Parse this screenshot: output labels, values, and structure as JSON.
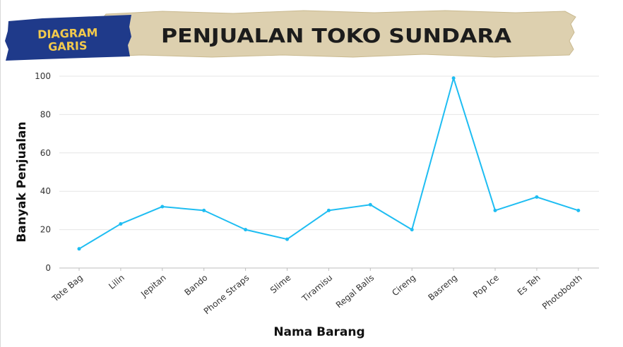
{
  "badge": {
    "line1": "DIAGRAM",
    "line2": "GARIS"
  },
  "title": "PENJUALAN TOKO SUNDARA",
  "colors": {
    "line": "#1EBDF2",
    "banner": "#DDD0AF",
    "badge": "#1F3A8A",
    "badge_text": "#F2C94C",
    "title_text": "#1c1c1c"
  },
  "chart_data": {
    "type": "line",
    "xlabel": "Nama Barang",
    "ylabel": "Banyak Penjualan",
    "ylim": [
      0,
      100
    ],
    "yticks": [
      0,
      20,
      40,
      60,
      80,
      100
    ],
    "grid": true,
    "categories": [
      "Tote Bag",
      "Lilin",
      "Jepitan",
      "Bando",
      "Phone Straps",
      "Slime",
      "Tiramisu",
      "Regal Balls",
      "Cireng",
      "Basreng",
      "Pop Ice",
      "Es Teh",
      "Photobooth"
    ],
    "series": [
      {
        "values": [
          10,
          23,
          32,
          30,
          20,
          15,
          30,
          33,
          20,
          99,
          30,
          37,
          30
        ]
      }
    ]
  }
}
